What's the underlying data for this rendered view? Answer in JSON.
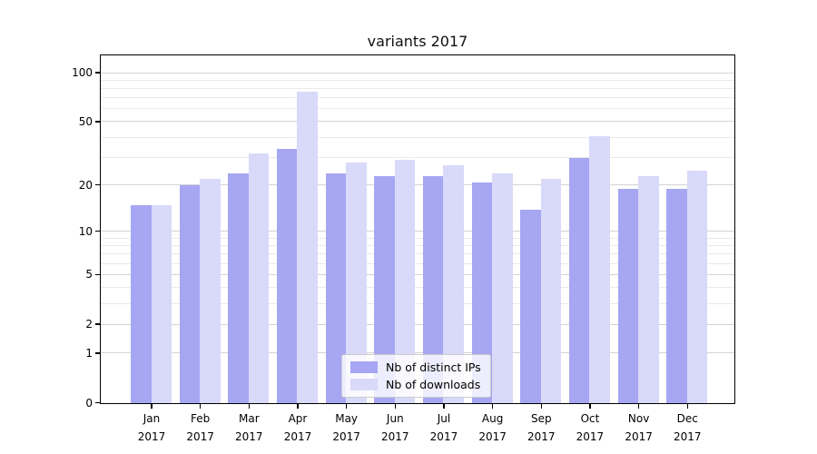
{
  "title": "variants 2017",
  "chart_data": {
    "type": "bar",
    "title": "variants 2017",
    "categories": [
      "Jan",
      "Feb",
      "Mar",
      "Apr",
      "May",
      "Jun",
      "Jul",
      "Aug",
      "Sep",
      "Oct",
      "Nov",
      "Dec"
    ],
    "xtick_year": "2017",
    "series": [
      {
        "name": "Nb of distinct IPs",
        "color": "#a6a6f3",
        "values": [
          15,
          20,
          24,
          34,
          24,
          23,
          23,
          21,
          14,
          30,
          19,
          19
        ]
      },
      {
        "name": "Nb of downloads",
        "color": "#d9d9fa",
        "values": [
          15,
          22,
          32,
          77,
          28,
          29,
          27,
          24,
          22,
          41,
          23,
          25
        ]
      }
    ],
    "yscale": "log10(1+x)",
    "yticks": [
      0,
      1,
      2,
      5,
      10,
      20,
      50,
      100
    ],
    "yticks_minor": [
      3,
      4,
      6,
      7,
      8,
      9,
      30,
      40,
      60,
      70,
      80,
      90
    ],
    "ylim": [
      0,
      126
    ],
    "xlabel": "",
    "ylabel": "",
    "grid": "horizontal",
    "legend_position": "lower-center"
  }
}
